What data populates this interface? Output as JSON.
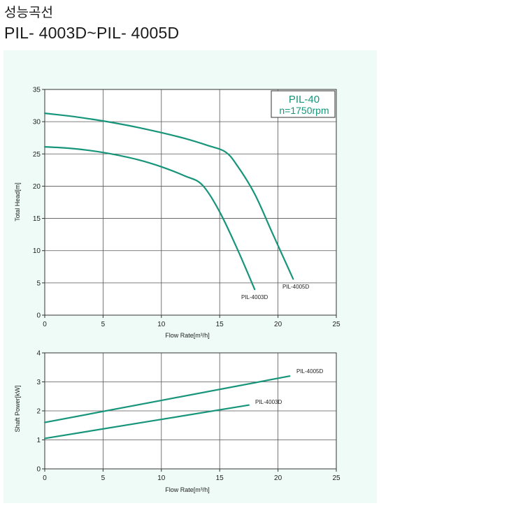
{
  "page": {
    "heading": "성능곡선",
    "subheading": "PIL- 4003D~PIL- 4005D"
  },
  "colors": {
    "curve": "#17957a",
    "badge_text": "#17957a",
    "panel_bg": "#eefbf7",
    "grid": "#555555"
  },
  "badge": {
    "line1": "PIL-40",
    "line2": "n=1750rpm"
  },
  "chart_data": [
    {
      "type": "line",
      "xlabel": "Flow Rate[m³/h]",
      "ylabel": "Total Head[m]",
      "xlim": [
        0,
        25
      ],
      "ylim": [
        0,
        35
      ],
      "xticks": [
        0,
        5,
        10,
        15,
        20,
        25
      ],
      "yticks": [
        0,
        5,
        10,
        15,
        20,
        25,
        30,
        35
      ],
      "grid": true,
      "series": [
        {
          "name": "PIL-4005D",
          "x": [
            0,
            2,
            4,
            6,
            8,
            10,
            12,
            14,
            15.5,
            16.5,
            18,
            19.5,
            21.3
          ],
          "y": [
            31.3,
            30.9,
            30.4,
            29.8,
            29.1,
            28.3,
            27.4,
            26.3,
            25.3,
            23.2,
            18.8,
            12.8,
            5.6
          ]
        },
        {
          "name": "PIL-4003D",
          "x": [
            0,
            2,
            4,
            6,
            8,
            10,
            12,
            13.5,
            15,
            16.5,
            18
          ],
          "y": [
            26.1,
            25.9,
            25.5,
            24.9,
            24.1,
            23.0,
            21.6,
            20.2,
            16.0,
            10.3,
            4.0
          ]
        }
      ]
    },
    {
      "type": "line",
      "xlabel": "Flow Rate[m³/h]",
      "ylabel": "Shaft Power[kW]",
      "xlim": [
        0,
        25
      ],
      "ylim": [
        0,
        4
      ],
      "xticks": [
        0,
        5,
        10,
        15,
        20,
        25
      ],
      "yticks": [
        0,
        1,
        2,
        3,
        4
      ],
      "grid": true,
      "series": [
        {
          "name": "PIL-4005D",
          "x": [
            0,
            21
          ],
          "y": [
            1.6,
            3.2
          ]
        },
        {
          "name": "PIL-4003D",
          "x": [
            0,
            17.5
          ],
          "y": [
            1.05,
            2.2
          ]
        }
      ]
    }
  ]
}
